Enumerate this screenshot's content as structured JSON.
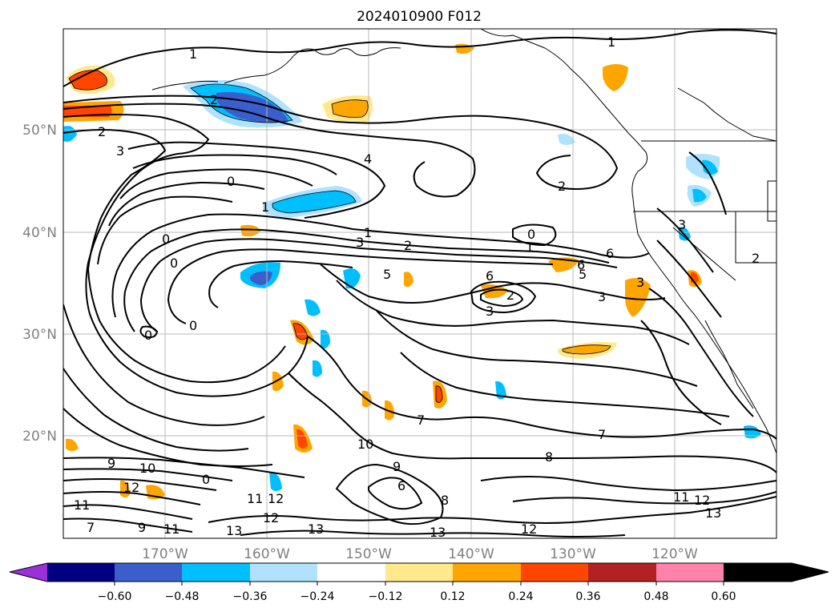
{
  "title": "2024010900 F012",
  "lat_labels": [
    "50°N",
    "40°N",
    "30°N",
    "20°N"
  ],
  "lon_labels": [
    "170°W",
    "160°W",
    "150°W",
    "140°W",
    "130°W",
    "120°W"
  ],
  "colorbar": {
    "ticks": [
      "−0.60",
      "−0.48",
      "−0.36",
      "−0.24",
      "−0.12",
      "0.12",
      "0.24",
      "0.36",
      "0.48",
      "0.60"
    ],
    "colors": [
      "#9b30d8",
      "#000080",
      "#3a5fcd",
      "#00bfff",
      "#b0e2ff",
      "#ffffff",
      "#ffe98c",
      "#ffa500",
      "#ff4500",
      "#b22222",
      "#ff82ab"
    ]
  },
  "contour_labels": [
    "1",
    "2",
    "2",
    "3",
    "4",
    "0",
    "2",
    "1",
    "1",
    "3",
    "2",
    "0",
    "1",
    "0",
    "0",
    "5",
    "6",
    "6",
    "5",
    "6",
    "2",
    "3",
    "3",
    "3",
    "2",
    "3",
    "0",
    "0",
    "7",
    "7",
    "10",
    "9",
    "9",
    "10",
    "12",
    "8",
    "11",
    "12",
    "13",
    "11",
    "9",
    "11",
    "12",
    "13",
    "13",
    "12",
    "11",
    "12",
    "13",
    "1",
    "7",
    "6",
    "8",
    "0"
  ],
  "shading_colors": {
    "light_yellow": "#ffe98c",
    "orange": "#ffa500",
    "red_orange": "#ff4500",
    "sky": "#00bfff",
    "light_blue": "#b0e2ff",
    "royal": "#3a5fcd"
  }
}
